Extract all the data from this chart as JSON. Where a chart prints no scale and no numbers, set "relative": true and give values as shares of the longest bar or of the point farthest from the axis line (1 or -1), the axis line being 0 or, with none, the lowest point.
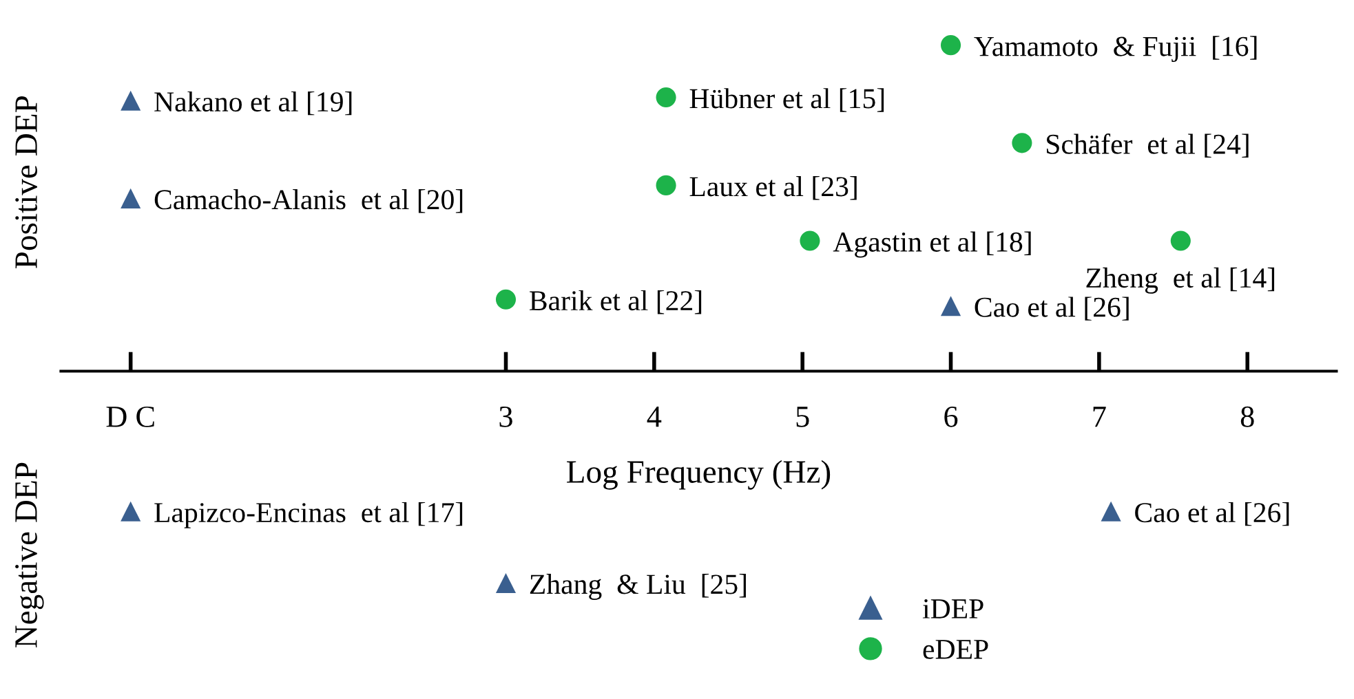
{
  "chart_data": {
    "type": "scatter",
    "relative": true,
    "xlabel": "Log Frequency (Hz)",
    "annotations": [
      "Positive DEP",
      "Negative DEP",
      {
        "text": "Nakano et al [19]",
        "x": 0.47,
        "y": 0.83
      },
      {
        "text": "Camacho-Alanis  et al [20]",
        "x": 0.47,
        "y": 0.53
      },
      {
        "text": "Cao et al [26]",
        "x": 6.0,
        "y": 0.2
      },
      {
        "text": "Lapizco-Encinas  et al [17]",
        "x": 0.47,
        "y": -0.43
      },
      {
        "text": "Zhang  & Liu  [25]",
        "x": 3.0,
        "y": -0.65
      },
      {
        "text": "Cao et al [26]",
        "x": 7.08,
        "y": -0.43
      },
      {
        "text": "Yamamoto  & Fujii  [16]",
        "x": 6.0,
        "y": 1
      },
      {
        "text": "Hübner et al [15]",
        "x": 4.08,
        "y": 0.84
      },
      {
        "text": "Laux et al [23]",
        "x": 4.08,
        "y": 0.57
      },
      {
        "text": "Schäfer  et al [24]",
        "x": 6.48,
        "y": 0.7
      },
      {
        "text": "Agastin et al [18]",
        "x": 5.05,
        "y": 0.4
      },
      {
        "text": "Zheng  et al [14]",
        "x": 7.55,
        "y": 0.4
      },
      {
        "text": "Barik et al [22]",
        "x": 3.0,
        "y": 0.22
      }
    ],
    "xlim": [
      0,
      8.6
    ],
    "xticks": [
      {
        "value": 0.47,
        "label": "D C"
      },
      3,
      4,
      5,
      6,
      7,
      8
    ],
    "legend": "bottom",
    "grid": false,
    "series": [
      {
        "name": "iDEP",
        "color": "#3a5f8f",
        "marker": "triangle",
        "x": [
          0.47,
          0.47,
          6.0,
          0.47,
          3.0,
          7.08
        ],
        "values": [
          0.83,
          0.53,
          0.2,
          -0.43,
          -0.65,
          -0.43
        ]
      },
      {
        "name": "eDEP",
        "color": "#1db34a",
        "marker": "circle",
        "x": [
          6.0,
          4.08,
          4.08,
          6.48,
          5.05,
          7.55,
          3.0
        ],
        "values": [
          1,
          0.84,
          0.57,
          0.7,
          0.4,
          0.4,
          0.22
        ]
      }
    ]
  }
}
